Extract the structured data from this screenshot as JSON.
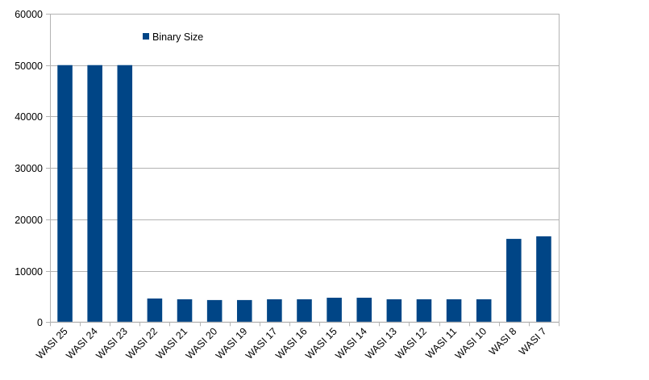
{
  "chart_data": {
    "type": "bar",
    "categories": [
      "WASI 25",
      "WASI 24",
      "WASI 23",
      "WASI 22",
      "WASI 21",
      "WASI 20",
      "WASI 19",
      "WASI 17",
      "WASI 16",
      "WASI 15",
      "WASI 14",
      "WASI 13",
      "WASI 12",
      "WASI 11",
      "WASI 10",
      "WASI 8",
      "WASI 7"
    ],
    "series": [
      {
        "name": "Binary Size",
        "color": "#004586",
        "values": [
          50000,
          50000,
          50000,
          4600,
          4450,
          4300,
          4300,
          4450,
          4450,
          4750,
          4750,
          4450,
          4450,
          4450,
          4450,
          16200,
          16700
        ]
      }
    ],
    "ylim": [
      0,
      60000
    ],
    "yticks": [
      0,
      10000,
      20000,
      30000,
      40000,
      50000,
      60000
    ],
    "grid": true,
    "legend": "top-left inside",
    "title": "",
    "xlabel": "",
    "ylabel": ""
  }
}
